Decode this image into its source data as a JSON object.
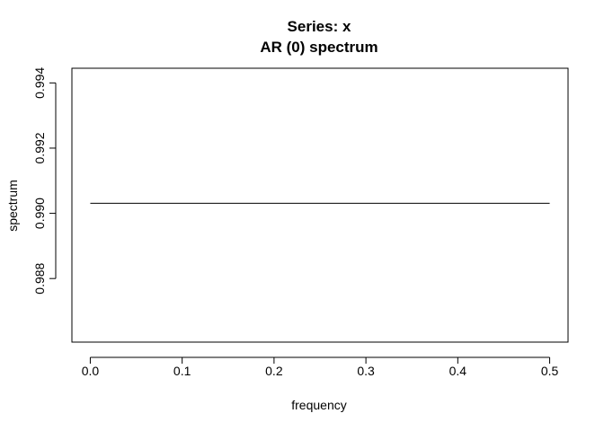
{
  "chart_data": {
    "type": "line",
    "title": "Series: x",
    "subtitle": "AR (0) spectrum",
    "xlabel": "frequency",
    "ylabel": "spectrum",
    "xlim": [
      -0.02,
      0.52
    ],
    "ylim": [
      0.98605,
      0.99445
    ],
    "x_ticks": [
      {
        "value": 0.0,
        "label": "0.0"
      },
      {
        "value": 0.1,
        "label": "0.1"
      },
      {
        "value": 0.2,
        "label": "0.2"
      },
      {
        "value": 0.3,
        "label": "0.3"
      },
      {
        "value": 0.4,
        "label": "0.4"
      },
      {
        "value": 0.5,
        "label": "0.5"
      }
    ],
    "y_ticks": [
      {
        "value": 0.988,
        "label": "0.988"
      },
      {
        "value": 0.99,
        "label": "0.990"
      },
      {
        "value": 0.992,
        "label": "0.992"
      },
      {
        "value": 0.994,
        "label": "0.994"
      }
    ],
    "series": [
      {
        "x": [
          0.0,
          0.5
        ],
        "values": [
          0.99031,
          0.99031
        ]
      }
    ],
    "grid": false,
    "line_color": "#000000"
  }
}
